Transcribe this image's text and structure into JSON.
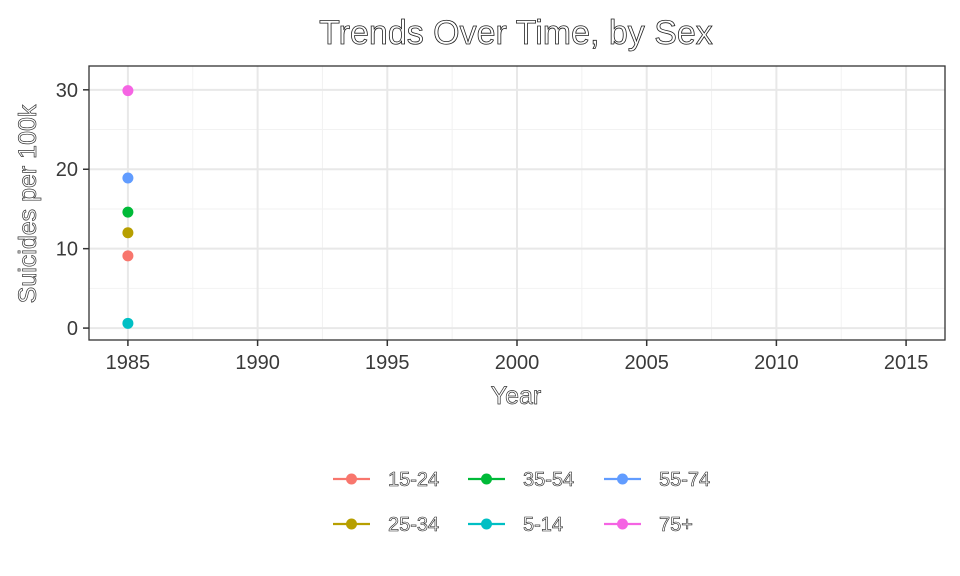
{
  "chart_data": {
    "type": "line",
    "title": "Trends Over Time, by Sex",
    "xlabel": "Year",
    "ylabel": "Suicides per 100k",
    "xlim": [
      1983.5,
      2016.5
    ],
    "ylim": [
      -1.5,
      33
    ],
    "x_ticks": [
      1985,
      1990,
      1995,
      2000,
      2005,
      2010,
      2015
    ],
    "y_ticks": [
      0,
      10,
      20,
      30
    ],
    "grid": true,
    "legend_position": "bottom",
    "series": [
      {
        "name": "15-24",
        "color": "#F8766D",
        "x": [
          1985
        ],
        "y": [
          9.1
        ]
      },
      {
        "name": "25-34",
        "color": "#B79F00",
        "x": [
          1985
        ],
        "y": [
          12.0
        ]
      },
      {
        "name": "35-54",
        "color": "#00BA38",
        "x": [
          1985
        ],
        "y": [
          14.6
        ]
      },
      {
        "name": "5-14",
        "color": "#00BFC4",
        "x": [
          1985
        ],
        "y": [
          0.6
        ]
      },
      {
        "name": "55-74",
        "color": "#619CFF",
        "x": [
          1985
        ],
        "y": [
          18.9
        ]
      },
      {
        "name": "75+",
        "color": "#F564E3",
        "x": [
          1985
        ],
        "y": [
          29.9
        ]
      }
    ],
    "legend_order": [
      "15-24",
      "25-34",
      "35-54",
      "5-14",
      "55-74",
      "75+"
    ]
  }
}
